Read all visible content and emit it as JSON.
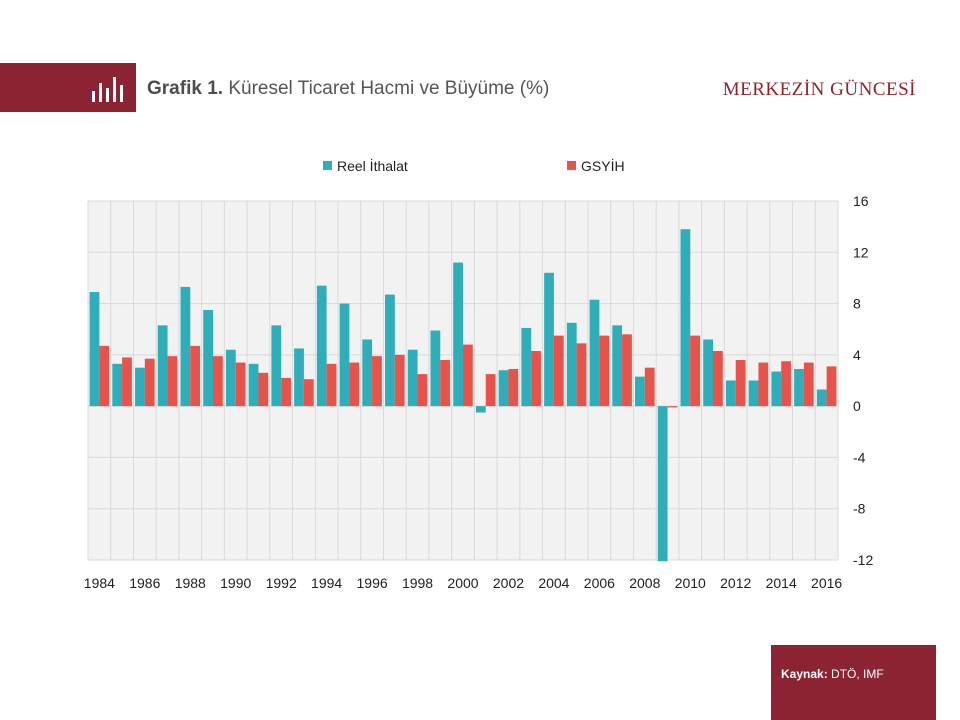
{
  "header": {
    "title_bold": "Grafik 1.",
    "title_rest": "Küresel Ticaret Hacmi ve Büyüme (%)",
    "brand": "MERKEZİN GÜNCESİ",
    "logo_icon": "bar-chart-icon",
    "accent_color": "#8b2332"
  },
  "source": {
    "label": "Kaynak:",
    "value": "DTÖ, IMF"
  },
  "chart_data": {
    "type": "bar",
    "title": "",
    "xlabel": "",
    "ylabel": "",
    "ylim": [
      -12,
      16
    ],
    "yticks": [
      16,
      12,
      8,
      4,
      0,
      -4,
      -8,
      -12
    ],
    "y_axis_side": "right",
    "grid": true,
    "legend_position": "top",
    "categories": [
      "1984",
      "1985",
      "1986",
      "1987",
      "1988",
      "1989",
      "1990",
      "1991",
      "1992",
      "1993",
      "1994",
      "1995",
      "1996",
      "1997",
      "1998",
      "1999",
      "2000",
      "2001",
      "2002",
      "2003",
      "2004",
      "2005",
      "2006",
      "2007",
      "2008",
      "2009",
      "2010",
      "2011",
      "2012",
      "2013",
      "2014",
      "2015",
      "2016"
    ],
    "xtick_labels": [
      "1984",
      "1986",
      "1988",
      "1990",
      "1992",
      "1994",
      "1996",
      "1998",
      "2000",
      "2002",
      "2004",
      "2006",
      "2008",
      "2010",
      "2012",
      "2014",
      "2016"
    ],
    "series": [
      {
        "name": "Reel İthalat",
        "color": "#2fadb9",
        "values": [
          8.9,
          3.3,
          3.0,
          6.3,
          9.3,
          7.5,
          4.4,
          3.3,
          6.3,
          4.5,
          9.4,
          8.0,
          5.2,
          8.7,
          4.4,
          5.9,
          11.2,
          -0.5,
          2.8,
          6.1,
          10.4,
          6.5,
          8.3,
          6.3,
          2.3,
          -12.1,
          13.8,
          5.2,
          2.0,
          2.0,
          2.7,
          2.9,
          1.3
        ]
      },
      {
        "name": "GSYİH",
        "color": "#e5534b",
        "values": [
          4.7,
          3.8,
          3.7,
          3.9,
          4.7,
          3.9,
          3.4,
          2.6,
          2.2,
          2.1,
          3.3,
          3.4,
          3.9,
          4.0,
          2.5,
          3.6,
          4.8,
          2.5,
          2.9,
          4.3,
          5.5,
          4.9,
          5.5,
          5.6,
          3.0,
          -0.1,
          5.5,
          4.3,
          3.6,
          3.4,
          3.5,
          3.4,
          3.1
        ]
      }
    ]
  }
}
